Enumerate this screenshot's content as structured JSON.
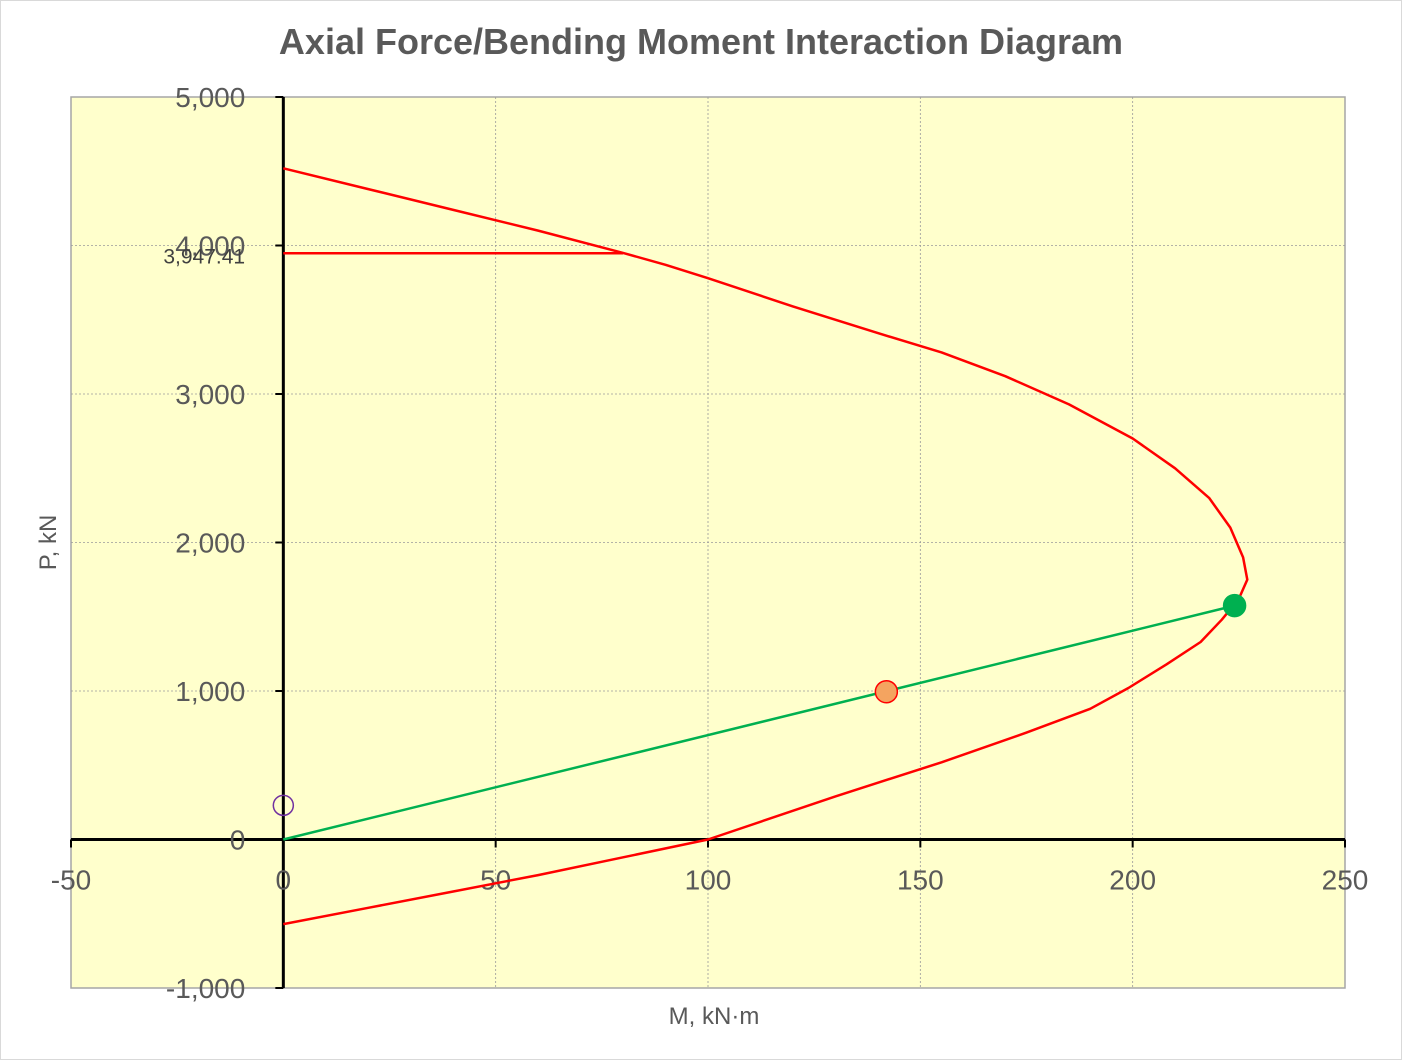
{
  "chart_data": {
    "type": "scatter",
    "title": "Axial Force/Bending Moment Interaction Diagram",
    "xlabel": "M, kN·m",
    "ylabel": "P, kN",
    "xlim": [
      -50,
      250
    ],
    "ylim": [
      -1000,
      5000
    ],
    "x_ticks": [
      -50,
      0,
      50,
      100,
      150,
      200,
      250
    ],
    "y_ticks": [
      -1000,
      0,
      1000,
      2000,
      3000,
      4000,
      5000
    ],
    "x_tick_labels": [
      "-50",
      "0",
      "50",
      "100",
      "150",
      "200",
      "250"
    ],
    "y_tick_labels": [
      "-1,000",
      "0",
      "1,000",
      "2,000",
      "3,000",
      "4,000",
      "5,000"
    ],
    "grid": true,
    "background_color": "#ffffcc",
    "series": [
      {
        "kind": "line",
        "color": "#ff0000",
        "points": [
          [
            0,
            4520
          ],
          [
            20,
            4380
          ],
          [
            40,
            4240
          ],
          [
            60,
            4100
          ],
          [
            80,
            3950
          ],
          [
            90,
            3870
          ],
          [
            100,
            3780
          ],
          [
            120,
            3590
          ],
          [
            140,
            3410
          ],
          [
            155,
            3280
          ],
          [
            170,
            3120
          ],
          [
            185,
            2930
          ],
          [
            200,
            2700
          ],
          [
            210,
            2500
          ],
          [
            218,
            2300
          ],
          [
            223,
            2100
          ],
          [
            226,
            1900
          ],
          [
            227,
            1750
          ],
          [
            225,
            1620
          ],
          [
            221,
            1480
          ],
          [
            216,
            1330
          ],
          [
            208,
            1180
          ],
          [
            199,
            1020
          ],
          [
            190,
            880
          ],
          [
            175,
            720
          ],
          [
            155,
            520
          ],
          [
            130,
            290
          ],
          [
            100,
            0
          ],
          [
            80,
            -120
          ],
          [
            60,
            -240
          ],
          [
            40,
            -350
          ],
          [
            20,
            -460
          ],
          [
            0,
            -570
          ]
        ]
      },
      {
        "kind": "line",
        "color": "#ff0000",
        "points": [
          [
            0,
            3947.41
          ],
          [
            80,
            3947.41
          ]
        ]
      },
      {
        "kind": "line",
        "color": "#00b050",
        "points": [
          [
            0,
            0
          ],
          [
            224,
            1575
          ]
        ]
      },
      {
        "kind": "point",
        "color": "#00b050",
        "marker": "filled-circle",
        "points": [
          [
            224,
            1575
          ]
        ]
      },
      {
        "kind": "point",
        "color": "#ff0000",
        "fill": "#f4a460",
        "marker": "filled-circle",
        "points": [
          [
            142,
            995
          ]
        ]
      },
      {
        "kind": "point",
        "color": "#7030a0",
        "marker": "open-circle",
        "points": [
          [
            0,
            230
          ]
        ]
      }
    ],
    "annotations": [
      {
        "text": "3,947.41",
        "x": 0,
        "y": 3947.41
      }
    ]
  }
}
